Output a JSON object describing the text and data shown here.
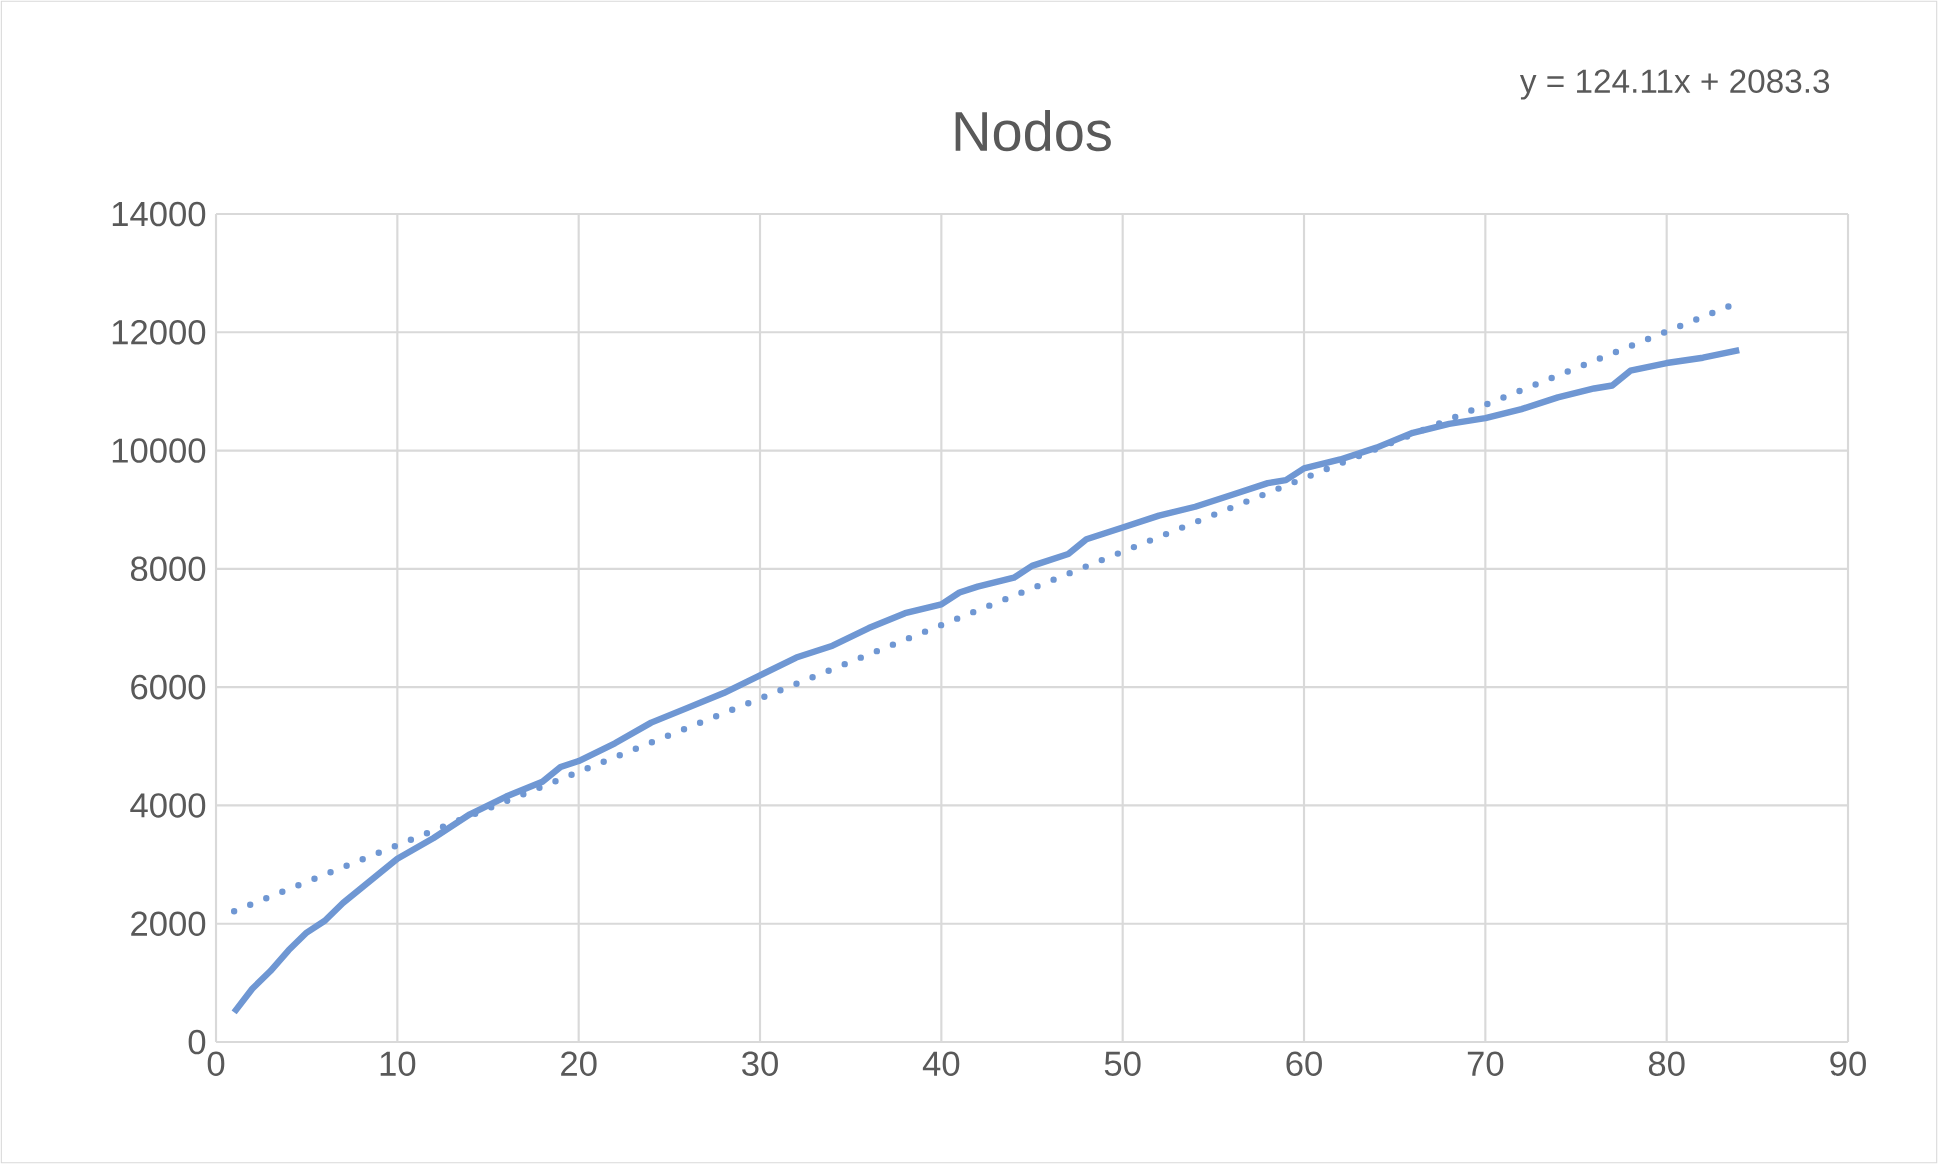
{
  "chart_data": {
    "type": "line",
    "title": "Nodos",
    "annotations": [
      "y = 124.11x + 2083.3"
    ],
    "xlim": [
      0,
      90
    ],
    "xticks": [
      0,
      10,
      20,
      30,
      40,
      50,
      60,
      70,
      80,
      90
    ],
    "ylim": [
      0,
      14000
    ],
    "yticks": [
      0,
      2000,
      4000,
      6000,
      8000,
      10000,
      12000,
      14000
    ],
    "grid": true,
    "marker": "none",
    "series": [
      {
        "color": "#6f97d3",
        "line_style": "solid",
        "x": [
          1,
          2,
          3,
          4,
          5,
          6,
          7,
          8,
          9,
          10,
          12,
          14,
          16,
          18,
          19,
          20,
          22,
          24,
          26,
          28,
          30,
          32,
          34,
          36,
          38,
          40,
          41,
          42,
          44,
          45,
          47,
          48,
          50,
          52,
          54,
          56,
          58,
          59,
          60,
          62,
          64,
          66,
          68,
          70,
          72,
          74,
          76,
          77,
          78,
          80,
          82,
          84
        ],
        "values": [
          500,
          900,
          1200,
          1550,
          1850,
          2050,
          2350,
          2600,
          2850,
          3100,
          3450,
          3850,
          4150,
          4400,
          4650,
          4750,
          5050,
          5400,
          5650,
          5900,
          6200,
          6500,
          6700,
          7000,
          7250,
          7400,
          7600,
          7700,
          7850,
          8050,
          8250,
          8500,
          8700,
          8900,
          9050,
          9250,
          9450,
          9500,
          9700,
          9850,
          10050,
          10300,
          10450,
          10550,
          10700,
          10900,
          11050,
          11100,
          11350,
          11480,
          11570,
          11700
        ]
      },
      {
        "type": "line",
        "color": "#6f97d3",
        "line_style": "dotted",
        "x": [
          1,
          84
        ],
        "values": [
          2210,
          12510
        ]
      }
    ]
  }
}
